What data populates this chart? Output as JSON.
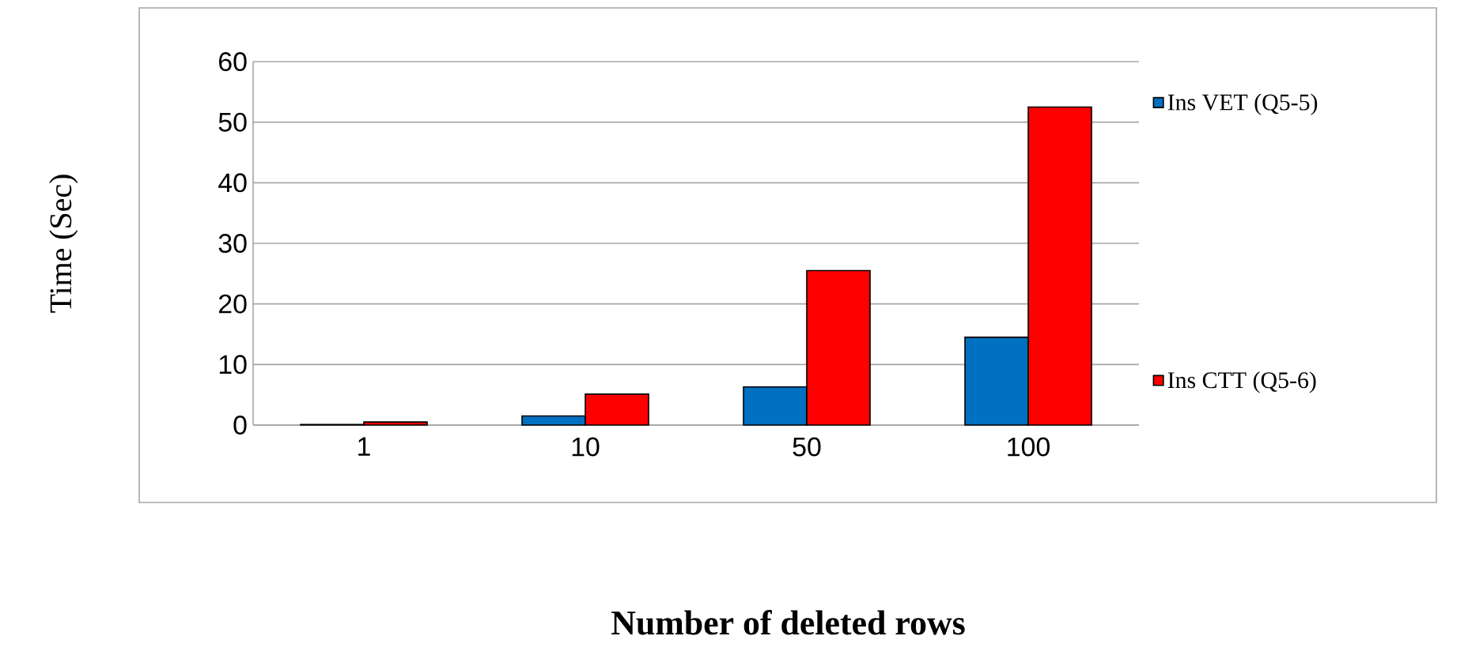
{
  "chart_data": {
    "type": "bar",
    "xlabel": "Number of deleted rows",
    "ylabel": "Time (Sec)",
    "categories": [
      "1",
      "10",
      "50",
      "100"
    ],
    "series": [
      {
        "name": "Ins VET (Q5-5)",
        "color": "#0070c0",
        "values": [
          0.1,
          1.5,
          6.3,
          14.5
        ]
      },
      {
        "name": "Ins CTT (Q5-6)",
        "color": "#ff0000",
        "values": [
          0.5,
          5.1,
          25.5,
          52.5
        ]
      }
    ],
    "ylim": [
      0,
      60
    ],
    "yticks": [
      0,
      10,
      20,
      30,
      40,
      50,
      60
    ],
    "grid": "y",
    "legend": "right"
  }
}
